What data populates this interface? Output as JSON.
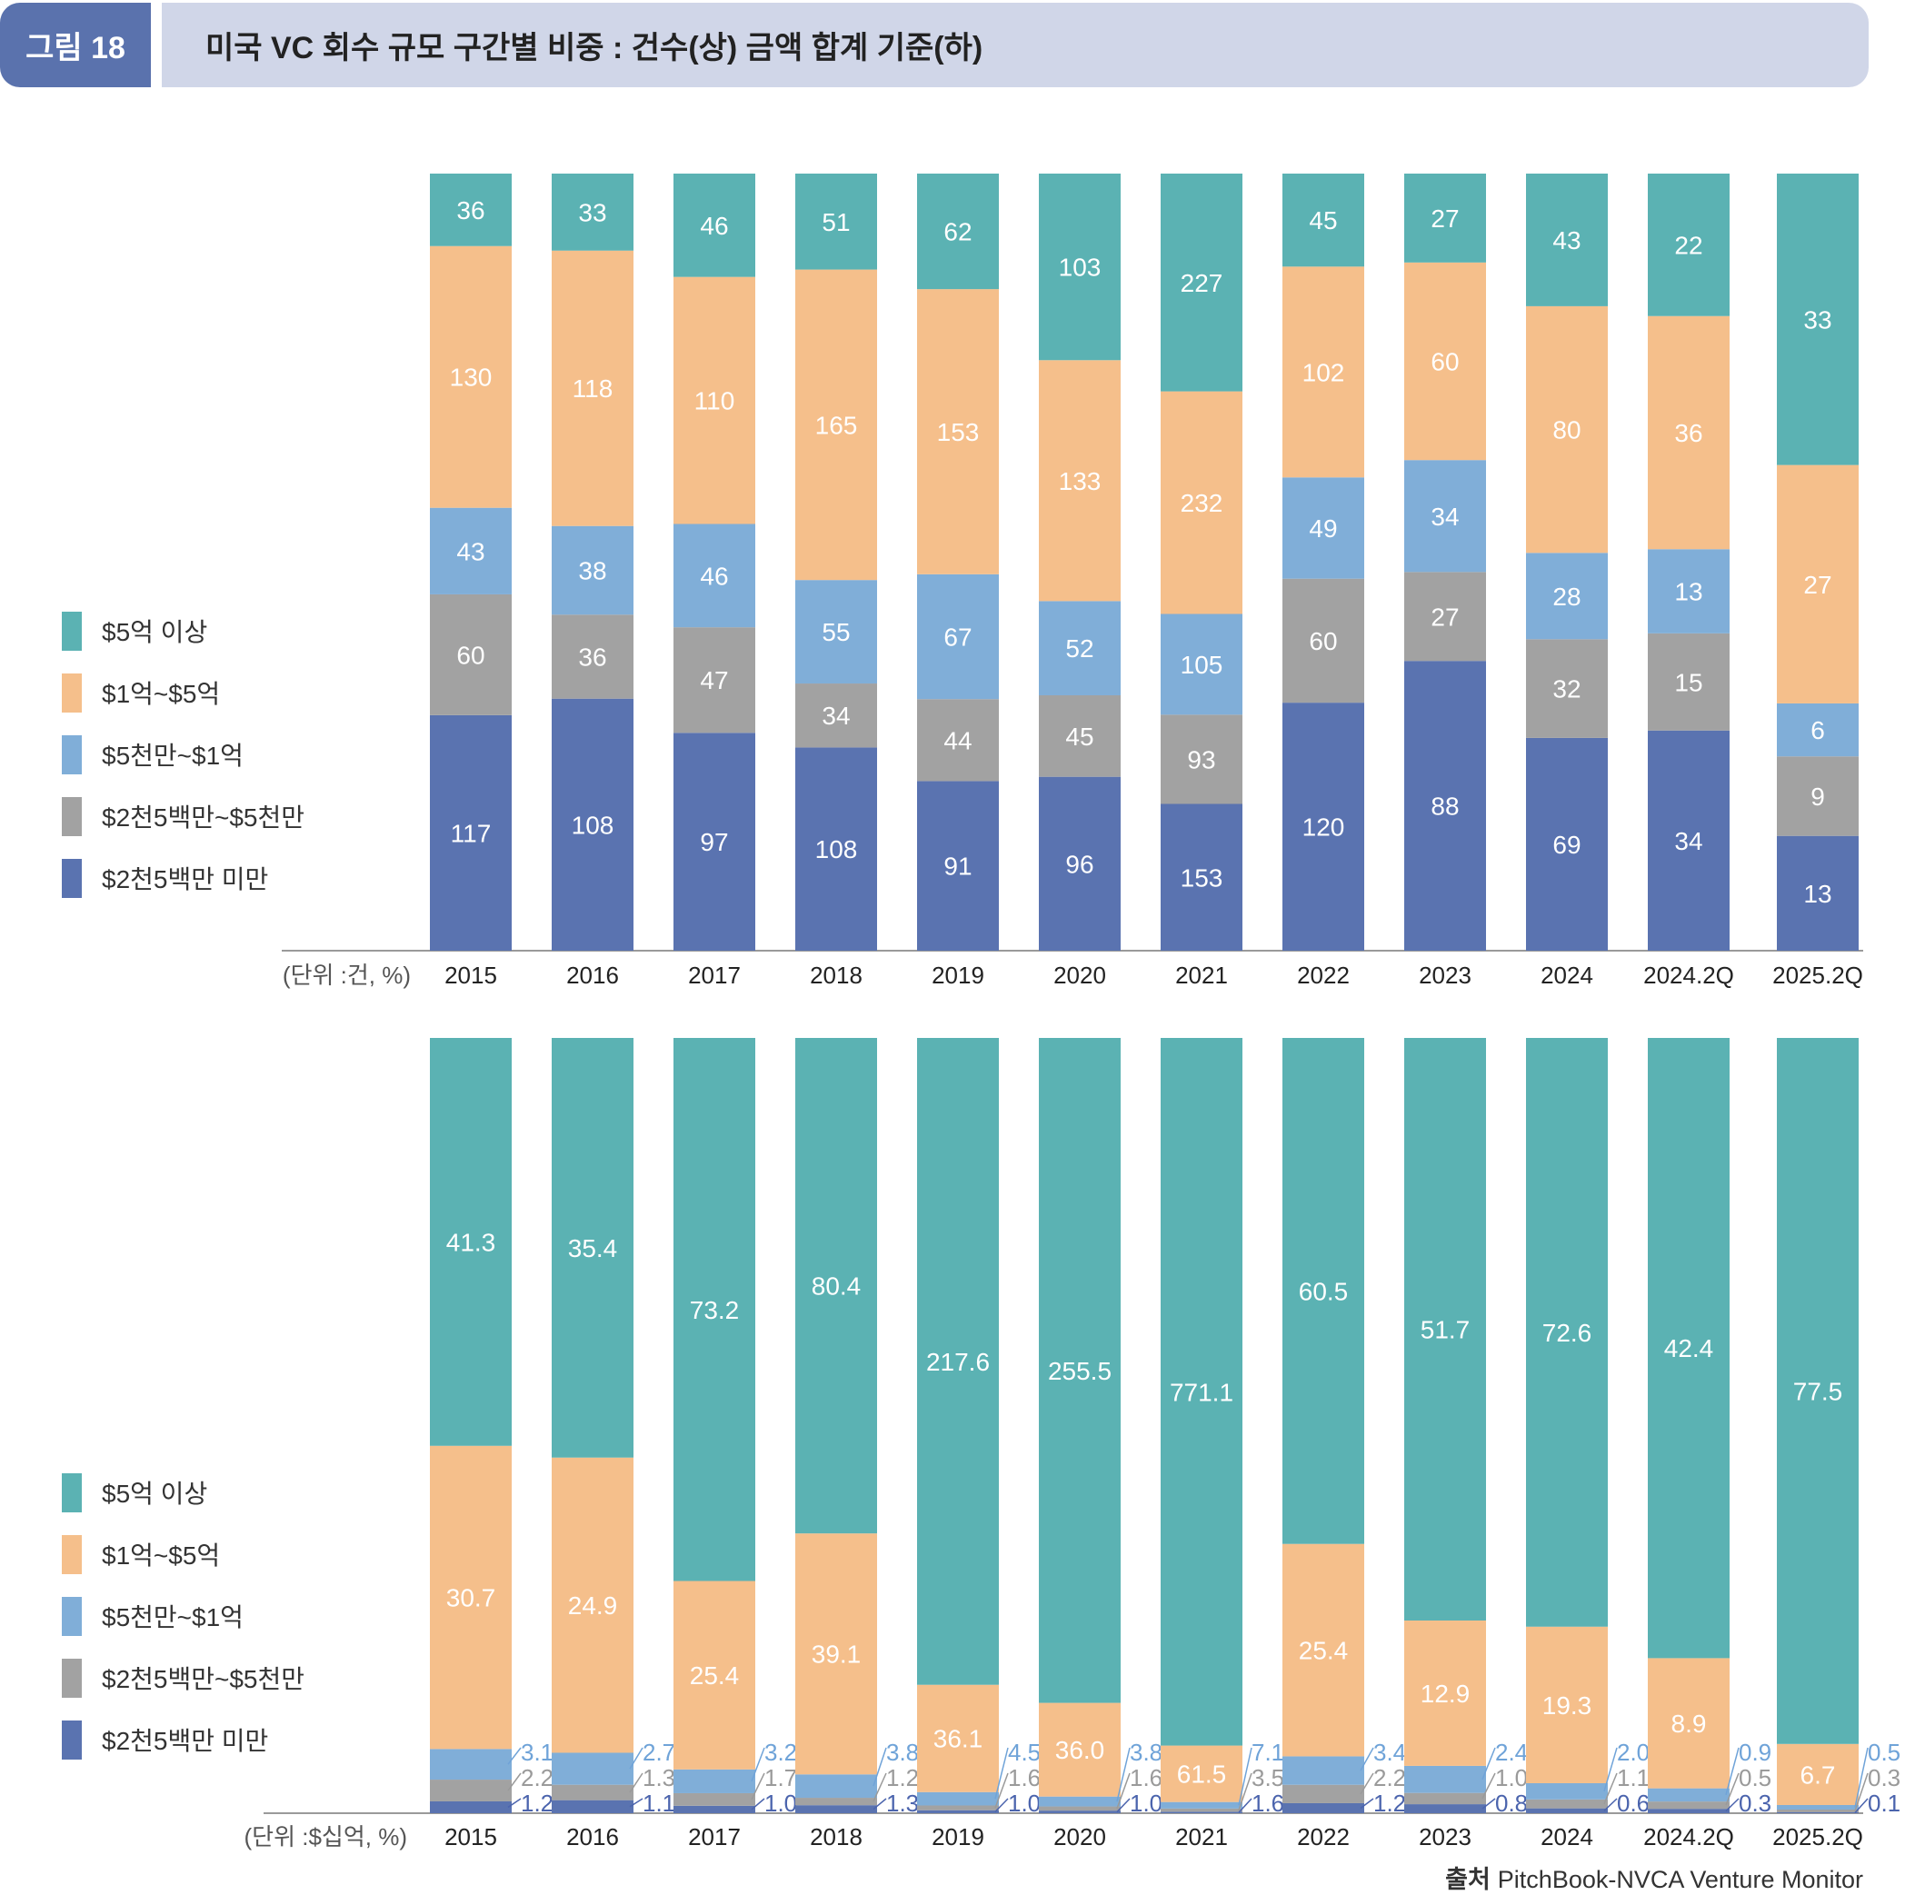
{
  "header": {
    "figure_label": "그림 18",
    "title": "미국 VC 회수 규모 구간별 비중 : 건수(상) 금액 합계 기준(하)"
  },
  "colors": {
    "over_500m": "#5bb2b3",
    "100m_500m": "#f5bf8b",
    "50m_100m": "#80aed8",
    "25m_50m": "#a2a2a2",
    "under_25m": "#5a73b0"
  },
  "legend": [
    {
      "key": "over_500m",
      "label": "$5억 이상"
    },
    {
      "key": "100m_500m",
      "label": "$1억~$5억"
    },
    {
      "key": "50m_100m",
      "label": "$5천만~$1억"
    },
    {
      "key": "25m_50m",
      "label": "$2천5백만~$5천만"
    },
    {
      "key": "under_25m",
      "label": "$2천5백만 미만"
    }
  ],
  "source": {
    "label": "출처",
    "text": "PitchBook-NVCA Venture Monitor"
  },
  "chart_data": [
    {
      "type": "bar",
      "stacked": "percent",
      "title": "건수 기준",
      "unit_label": "(단위 :건, %)",
      "categories": [
        "2015",
        "2016",
        "2017",
        "2018",
        "2019",
        "2020",
        "2021",
        "2022",
        "2023",
        "2024",
        "2024.2Q",
        "2025.2Q"
      ],
      "series": [
        {
          "name": "$2천5백만 미만",
          "key": "under_25m",
          "values": [
            117,
            108,
            97,
            108,
            91,
            96,
            153,
            120,
            88,
            69,
            34,
            13
          ]
        },
        {
          "name": "$2천5백만~$5천만",
          "key": "25m_50m",
          "values": [
            60,
            36,
            47,
            34,
            44,
            45,
            93,
            60,
            27,
            32,
            15,
            9
          ]
        },
        {
          "name": "$5천만~$1억",
          "key": "50m_100m",
          "values": [
            43,
            38,
            46,
            55,
            67,
            52,
            105,
            49,
            34,
            28,
            13,
            6
          ]
        },
        {
          "name": "$1억~$5억",
          "key": "100m_500m",
          "values": [
            130,
            118,
            110,
            165,
            153,
            133,
            232,
            102,
            60,
            80,
            36,
            27
          ]
        },
        {
          "name": "$5억 이상",
          "key": "over_500m",
          "values": [
            36,
            33,
            46,
            51,
            62,
            103,
            227,
            45,
            27,
            43,
            22,
            33
          ]
        }
      ],
      "ylim": [
        0,
        100
      ],
      "legend_position": "left"
    },
    {
      "type": "bar",
      "stacked": "percent",
      "title": "금액 합계 기준",
      "unit_label": "(단위 :$십억, %)",
      "categories": [
        "2015",
        "2016",
        "2017",
        "2018",
        "2019",
        "2020",
        "2021",
        "2022",
        "2023",
        "2024",
        "2024.2Q",
        "2025.2Q"
      ],
      "series": [
        {
          "name": "$2천5백만 미만",
          "key": "under_25m",
          "values": [
            1.2,
            1.1,
            1.0,
            1.3,
            1.0,
            1.0,
            1.6,
            1.2,
            0.8,
            0.6,
            0.3,
            0.1
          ]
        },
        {
          "name": "$2천5백만~$5천만",
          "key": "25m_50m",
          "values": [
            2.2,
            1.3,
            1.7,
            1.2,
            1.6,
            1.6,
            3.5,
            2.2,
            1.0,
            1.1,
            0.5,
            0.3
          ]
        },
        {
          "name": "$5천만~$1억",
          "key": "50m_100m",
          "values": [
            3.1,
            2.7,
            3.2,
            3.8,
            4.5,
            3.8,
            7.1,
            3.4,
            2.4,
            2.0,
            0.9,
            0.5
          ]
        },
        {
          "name": "$1억~$5억",
          "key": "100m_500m",
          "values": [
            30.7,
            24.9,
            25.4,
            39.1,
            36.1,
            36.0,
            61.5,
            25.4,
            12.9,
            19.3,
            8.9,
            6.7
          ]
        },
        {
          "name": "$5억 이상",
          "key": "over_500m",
          "values": [
            41.3,
            35.4,
            73.2,
            80.4,
            217.6,
            255.5,
            771.1,
            60.5,
            51.7,
            72.6,
            42.4,
            77.5
          ]
        }
      ],
      "ylim": [
        0,
        100
      ],
      "legend_position": "left"
    }
  ]
}
